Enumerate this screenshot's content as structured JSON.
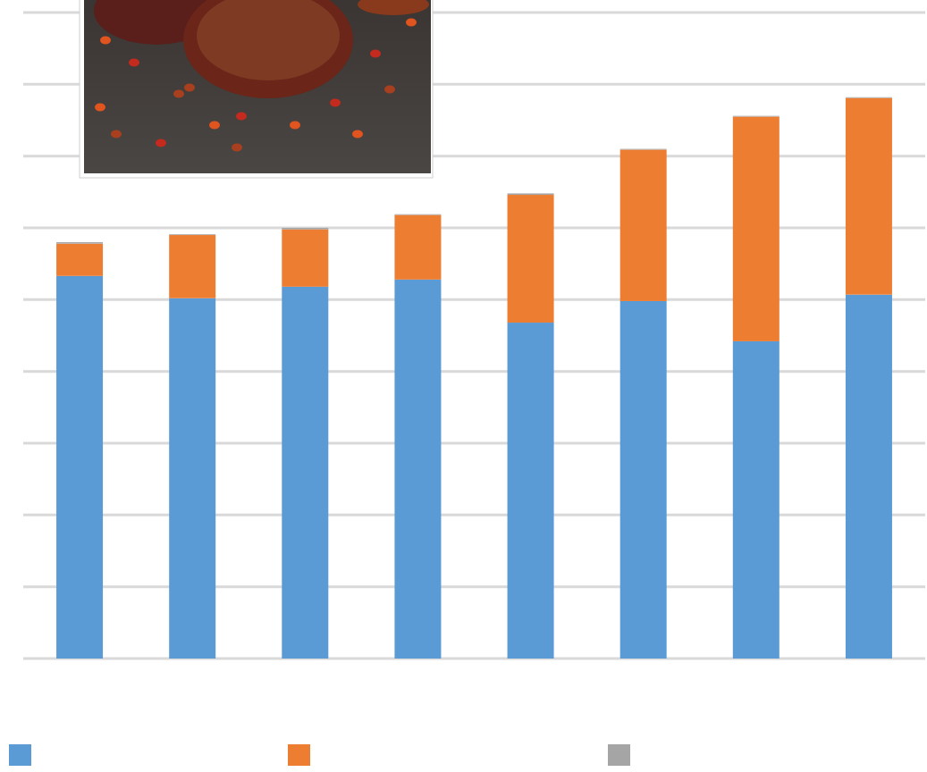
{
  "chart_data": {
    "type": "bar",
    "stacked": true,
    "categories": [
      null,
      null,
      null,
      null,
      null,
      null,
      null,
      null
    ],
    "series": [
      {
        "color": "#5b9bd5",
        "values": [
          5.33,
          5.02,
          5.18,
          5.28,
          4.68,
          4.98,
          4.42,
          5.07
        ]
      },
      {
        "color": "#ed7d31",
        "values": [
          0.45,
          0.88,
          0.8,
          0.9,
          1.78,
          2.11,
          3.13,
          2.74
        ]
      },
      {
        "color": "#a5a5a5",
        "values": [
          0.02,
          0.01,
          0.02,
          0.01,
          0.02,
          0.01,
          0.01,
          0.01
        ]
      }
    ],
    "ylim": [
      0,
      9
    ],
    "yticks": [
      0,
      1,
      2,
      3,
      4,
      5,
      6,
      7,
      8,
      9
    ],
    "grid": true,
    "legend": "bottom",
    "tick_labels": false
  }
}
